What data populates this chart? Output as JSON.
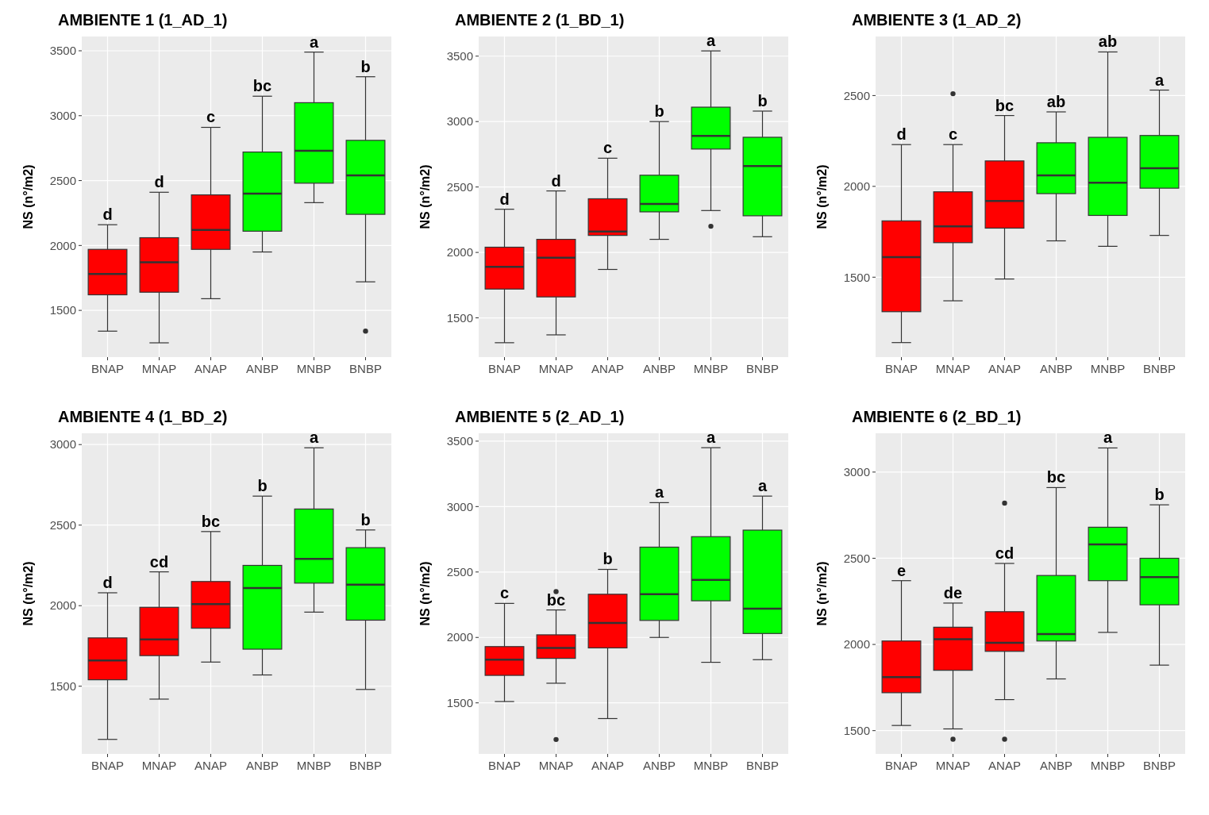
{
  "chart_data": [
    {
      "type": "box",
      "title": "AMBIENTE 1 (1_AD_1)",
      "ylabel": "NS (n°/m2)",
      "categories": [
        "BNAP",
        "MNAP",
        "ANAP",
        "ANBP",
        "MNBP",
        "BNBP"
      ],
      "colors": [
        "#ff0000",
        "#ff0000",
        "#ff0000",
        "#00ff00",
        "#00ff00",
        "#00ff00"
      ],
      "ylim": [
        1140,
        3610
      ],
      "yticks": [
        1500,
        2000,
        2500,
        3000,
        3500
      ],
      "grid": true,
      "boxes": [
        {
          "low": 1340,
          "q1": 1620,
          "median": 1780,
          "q3": 1970,
          "high": 2160
        },
        {
          "low": 1250,
          "q1": 1640,
          "median": 1870,
          "q3": 2060,
          "high": 2410
        },
        {
          "low": 1590,
          "q1": 1970,
          "median": 2120,
          "q3": 2390,
          "high": 2910
        },
        {
          "low": 1950,
          "q1": 2110,
          "median": 2400,
          "q3": 2720,
          "high": 3150
        },
        {
          "low": 2330,
          "q1": 2480,
          "median": 2730,
          "q3": 3100,
          "high": 3490
        },
        {
          "low": 1720,
          "q1": 2240,
          "median": 2540,
          "q3": 2810,
          "high": 3300,
          "outliers": [
            1340
          ]
        }
      ],
      "annotations": [
        {
          "text": "d",
          "x": "BNAP",
          "y": 2160
        },
        {
          "text": "d",
          "x": "MNAP",
          "y": 2410
        },
        {
          "text": "c",
          "x": "ANAP",
          "y": 2910
        },
        {
          "text": "bc",
          "x": "ANBP",
          "y": 3150
        },
        {
          "text": "a",
          "x": "MNBP",
          "y": 3490
        },
        {
          "text": "b",
          "x": "BNBP",
          "y": 3300
        }
      ]
    },
    {
      "type": "box",
      "title": "AMBIENTE 2 (1_BD_1)",
      "ylabel": "NS (n°/m2)",
      "categories": [
        "BNAP",
        "MNAP",
        "ANAP",
        "ANBP",
        "MNBP",
        "BNBP"
      ],
      "colors": [
        "#ff0000",
        "#ff0000",
        "#ff0000",
        "#00ff00",
        "#00ff00",
        "#00ff00"
      ],
      "ylim": [
        1200,
        3650
      ],
      "yticks": [
        1500,
        2000,
        2500,
        3000,
        3500
      ],
      "grid": true,
      "boxes": [
        {
          "low": 1310,
          "q1": 1720,
          "median": 1890,
          "q3": 2040,
          "high": 2330
        },
        {
          "low": 1370,
          "q1": 1660,
          "median": 1960,
          "q3": 2100,
          "high": 2470
        },
        {
          "low": 1870,
          "q1": 2130,
          "median": 2160,
          "q3": 2410,
          "high": 2720
        },
        {
          "low": 2100,
          "q1": 2310,
          "median": 2370,
          "q3": 2590,
          "high": 3000
        },
        {
          "low": 2320,
          "q1": 2790,
          "median": 2890,
          "q3": 3110,
          "high": 3540,
          "outliers": [
            2200
          ]
        },
        {
          "low": 2120,
          "q1": 2280,
          "median": 2660,
          "q3": 2880,
          "high": 3080
        }
      ],
      "annotations": [
        {
          "text": "d",
          "x": "BNAP",
          "y": 2330
        },
        {
          "text": "d",
          "x": "MNAP",
          "y": 2470
        },
        {
          "text": "c",
          "x": "ANAP",
          "y": 2720
        },
        {
          "text": "b",
          "x": "ANBP",
          "y": 3000
        },
        {
          "text": "a",
          "x": "MNBP",
          "y": 3540
        },
        {
          "text": "b",
          "x": "BNBP",
          "y": 3080
        }
      ]
    },
    {
      "type": "box",
      "title": "AMBIENTE 3 (1_AD_2)",
      "ylabel": "NS (n°/m2)",
      "categories": [
        "BNAP",
        "MNAP",
        "ANAP",
        "ANBP",
        "MNBP",
        "BNBP"
      ],
      "colors": [
        "#ff0000",
        "#ff0000",
        "#ff0000",
        "#00ff00",
        "#00ff00",
        "#00ff00"
      ],
      "ylim": [
        1060,
        2825
      ],
      "yticks": [
        1500,
        2000,
        2500
      ],
      "grid": true,
      "boxes": [
        {
          "low": 1140,
          "q1": 1310,
          "median": 1610,
          "q3": 1810,
          "high": 2230
        },
        {
          "low": 1370,
          "q1": 1690,
          "median": 1780,
          "q3": 1970,
          "high": 2230,
          "outliers": [
            2510
          ]
        },
        {
          "low": 1490,
          "q1": 1770,
          "median": 1920,
          "q3": 2140,
          "high": 2390
        },
        {
          "low": 1700,
          "q1": 1960,
          "median": 2060,
          "q3": 2240,
          "high": 2410
        },
        {
          "low": 1670,
          "q1": 1840,
          "median": 2020,
          "q3": 2270,
          "high": 2740
        },
        {
          "low": 1730,
          "q1": 1990,
          "median": 2100,
          "q3": 2280,
          "high": 2530
        }
      ],
      "annotations": [
        {
          "text": "d",
          "x": "BNAP",
          "y": 2230
        },
        {
          "text": "c",
          "x": "MNAP",
          "y": 2230
        },
        {
          "text": "bc",
          "x": "ANAP",
          "y": 2390
        },
        {
          "text": "ab",
          "x": "ANBP",
          "y": 2410
        },
        {
          "text": "ab",
          "x": "MNBP",
          "y": 2740
        },
        {
          "text": "a",
          "x": "BNBP",
          "y": 2530
        }
      ]
    },
    {
      "type": "box",
      "title": "AMBIENTE 4 (1_BD_2)",
      "ylabel": "NS (n°/m2)",
      "categories": [
        "BNAP",
        "MNAP",
        "ANAP",
        "ANBP",
        "MNBP",
        "BNBP"
      ],
      "colors": [
        "#ff0000",
        "#ff0000",
        "#ff0000",
        "#00ff00",
        "#00ff00",
        "#00ff00"
      ],
      "ylim": [
        1080,
        3070
      ],
      "yticks": [
        1500,
        2000,
        2500,
        3000
      ],
      "grid": true,
      "boxes": [
        {
          "low": 1170,
          "q1": 1540,
          "median": 1660,
          "q3": 1800,
          "high": 2080
        },
        {
          "low": 1420,
          "q1": 1690,
          "median": 1790,
          "q3": 1990,
          "high": 2210
        },
        {
          "low": 1650,
          "q1": 1860,
          "median": 2010,
          "q3": 2150,
          "high": 2460
        },
        {
          "low": 1570,
          "q1": 1730,
          "median": 2110,
          "q3": 2250,
          "high": 2680
        },
        {
          "low": 1960,
          "q1": 2140,
          "median": 2290,
          "q3": 2600,
          "high": 2980
        },
        {
          "low": 1480,
          "q1": 1910,
          "median": 2130,
          "q3": 2360,
          "high": 2470
        }
      ],
      "annotations": [
        {
          "text": "d",
          "x": "BNAP",
          "y": 2080
        },
        {
          "text": "cd",
          "x": "MNAP",
          "y": 2210
        },
        {
          "text": "bc",
          "x": "ANAP",
          "y": 2460
        },
        {
          "text": "b",
          "x": "ANBP",
          "y": 2680
        },
        {
          "text": "a",
          "x": "MNBP",
          "y": 2980
        },
        {
          "text": "b",
          "x": "BNBP",
          "y": 2470
        }
      ]
    },
    {
      "type": "box",
      "title": "AMBIENTE 5 (2_AD_1)",
      "ylabel": "NS (n°/m2)",
      "categories": [
        "BNAP",
        "MNAP",
        "ANAP",
        "ANBP",
        "MNBP",
        "BNBP"
      ],
      "colors": [
        "#ff0000",
        "#ff0000",
        "#ff0000",
        "#00ff00",
        "#00ff00",
        "#00ff00"
      ],
      "ylim": [
        1110,
        3560
      ],
      "yticks": [
        1500,
        2000,
        2500,
        3000,
        3500
      ],
      "grid": true,
      "boxes": [
        {
          "low": 1510,
          "q1": 1710,
          "median": 1830,
          "q3": 1930,
          "high": 2260
        },
        {
          "low": 1650,
          "q1": 1840,
          "median": 1920,
          "q3": 2020,
          "high": 2210,
          "outliers": [
            2350,
            1220
          ]
        },
        {
          "low": 1380,
          "q1": 1920,
          "median": 2110,
          "q3": 2330,
          "high": 2520
        },
        {
          "low": 2000,
          "q1": 2130,
          "median": 2330,
          "q3": 2690,
          "high": 3030
        },
        {
          "low": 1810,
          "q1": 2280,
          "median": 2440,
          "q3": 2770,
          "high": 3450
        },
        {
          "low": 1830,
          "q1": 2030,
          "median": 2220,
          "q3": 2820,
          "high": 3080
        }
      ],
      "annotations": [
        {
          "text": "c",
          "x": "BNAP",
          "y": 2260
        },
        {
          "text": "bc",
          "x": "MNAP",
          "y": 2210
        },
        {
          "text": "b",
          "x": "ANAP",
          "y": 2520
        },
        {
          "text": "a",
          "x": "ANBP",
          "y": 3030
        },
        {
          "text": "a",
          "x": "MNBP",
          "y": 3450
        },
        {
          "text": "a",
          "x": "BNBP",
          "y": 3080
        }
      ]
    },
    {
      "type": "box",
      "title": "AMBIENTE 6 (2_BD_1)",
      "ylabel": "NS (n°/m2)",
      "categories": [
        "BNAP",
        "MNAP",
        "ANAP",
        "ANBP",
        "MNBP",
        "BNBP"
      ],
      "colors": [
        "#ff0000",
        "#ff0000",
        "#ff0000",
        "#00ff00",
        "#00ff00",
        "#00ff00"
      ],
      "ylim": [
        1365,
        3225
      ],
      "yticks": [
        1500,
        2000,
        2500,
        3000
      ],
      "grid": true,
      "boxes": [
        {
          "low": 1530,
          "q1": 1720,
          "median": 1810,
          "q3": 2020,
          "high": 2370
        },
        {
          "low": 1510,
          "q1": 1850,
          "median": 2030,
          "q3": 2100,
          "high": 2240,
          "outliers": [
            1450
          ]
        },
        {
          "low": 1680,
          "q1": 1960,
          "median": 2010,
          "q3": 2190,
          "high": 2470,
          "outliers": [
            2820,
            1450
          ]
        },
        {
          "low": 1800,
          "q1": 2020,
          "median": 2060,
          "q3": 2400,
          "high": 2910
        },
        {
          "low": 2070,
          "q1": 2370,
          "median": 2580,
          "q3": 2680,
          "high": 3140
        },
        {
          "low": 1880,
          "q1": 2230,
          "median": 2390,
          "q3": 2500,
          "high": 2810
        }
      ],
      "annotations": [
        {
          "text": "e",
          "x": "BNAP",
          "y": 2370
        },
        {
          "text": "de",
          "x": "MNAP",
          "y": 2240
        },
        {
          "text": "cd",
          "x": "ANAP",
          "y": 2470
        },
        {
          "text": "bc",
          "x": "ANBP",
          "y": 2910
        },
        {
          "text": "a",
          "x": "MNBP",
          "y": 3140
        },
        {
          "text": "b",
          "x": "BNBP",
          "y": 2810
        }
      ]
    }
  ]
}
